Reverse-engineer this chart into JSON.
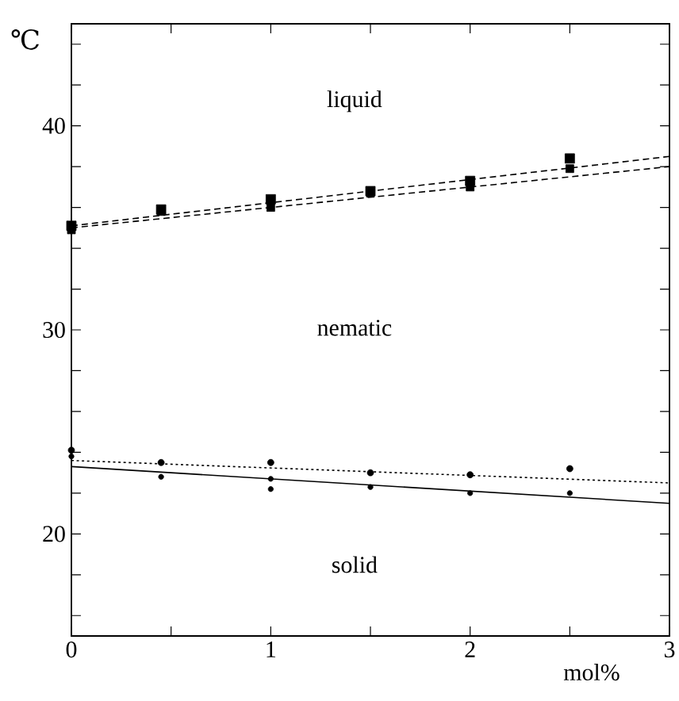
{
  "chart_data": {
    "type": "scatter",
    "xlabel": "mol%",
    "ylabel": "℃",
    "annotations": [
      "liquid",
      "nematic",
      "solid"
    ],
    "xlim": [
      0,
      3
    ],
    "ylim": [
      15,
      45
    ],
    "xticks": [
      0,
      {
        "value": 0.5,
        "label": null
      },
      1,
      {
        "value": 1.5,
        "label": null
      },
      2,
      {
        "value": 2.5,
        "label": null
      },
      3
    ],
    "yticks": [
      {
        "value": 16,
        "label": null
      },
      {
        "value": 18,
        "label": null
      },
      20,
      {
        "value": 22,
        "label": null
      },
      {
        "value": 24,
        "label": null
      },
      {
        "value": 26,
        "label": null
      },
      {
        "value": 28,
        "label": null
      },
      30,
      {
        "value": 32,
        "label": null
      },
      {
        "value": 34,
        "label": null
      },
      {
        "value": 36,
        "label": null
      },
      {
        "value": 38,
        "label": null
      },
      40,
      {
        "value": 42,
        "label": null
      },
      {
        "value": 44,
        "label": null
      }
    ],
    "series": [
      {
        "marker": "square",
        "color": "#000000",
        "x": [
          0,
          0.45,
          1,
          1.5,
          2,
          2.5
        ],
        "values": [
          35.1,
          35.9,
          36.4,
          36.8,
          37.3,
          38.4
        ]
      },
      {
        "marker": "square",
        "color": "#000000",
        "x": [
          0,
          0.45,
          1,
          1.5,
          2,
          2.5
        ],
        "values": [
          34.9,
          35.8,
          36.0,
          36.7,
          37.0,
          37.9
        ]
      },
      {
        "marker": "circle",
        "color": "#000000",
        "x": [
          0,
          0.45,
          1,
          1.5,
          2,
          2.5
        ],
        "values": [
          24.1,
          23.5,
          23.5,
          23.0,
          22.9,
          23.2
        ]
      },
      {
        "marker": "circle",
        "color": "#000000",
        "x": [
          0,
          0.45,
          1,
          1,
          1.5,
          2,
          2.5
        ],
        "values": [
          23.8,
          22.8,
          22.7,
          22.2,
          22.3,
          22.0,
          22.0
        ]
      },
      {
        "type": "line",
        "line_style": "dashed",
        "marker": "none",
        "color": "#000000",
        "x": [
          0,
          3
        ],
        "values": [
          35.1,
          38.5
        ]
      },
      {
        "type": "line",
        "line_style": "dashed",
        "marker": "none",
        "color": "#000000",
        "x": [
          0,
          3
        ],
        "values": [
          35.0,
          38.0
        ]
      },
      {
        "type": "line",
        "line_style": "dotted",
        "marker": "none",
        "color": "#000000",
        "x": [
          0,
          3
        ],
        "values": [
          23.6,
          22.5
        ]
      },
      {
        "type": "line",
        "line_style": "solid",
        "marker": "none",
        "color": "#000000",
        "x": [
          0,
          3
        ],
        "values": [
          23.3,
          21.5
        ]
      }
    ]
  }
}
